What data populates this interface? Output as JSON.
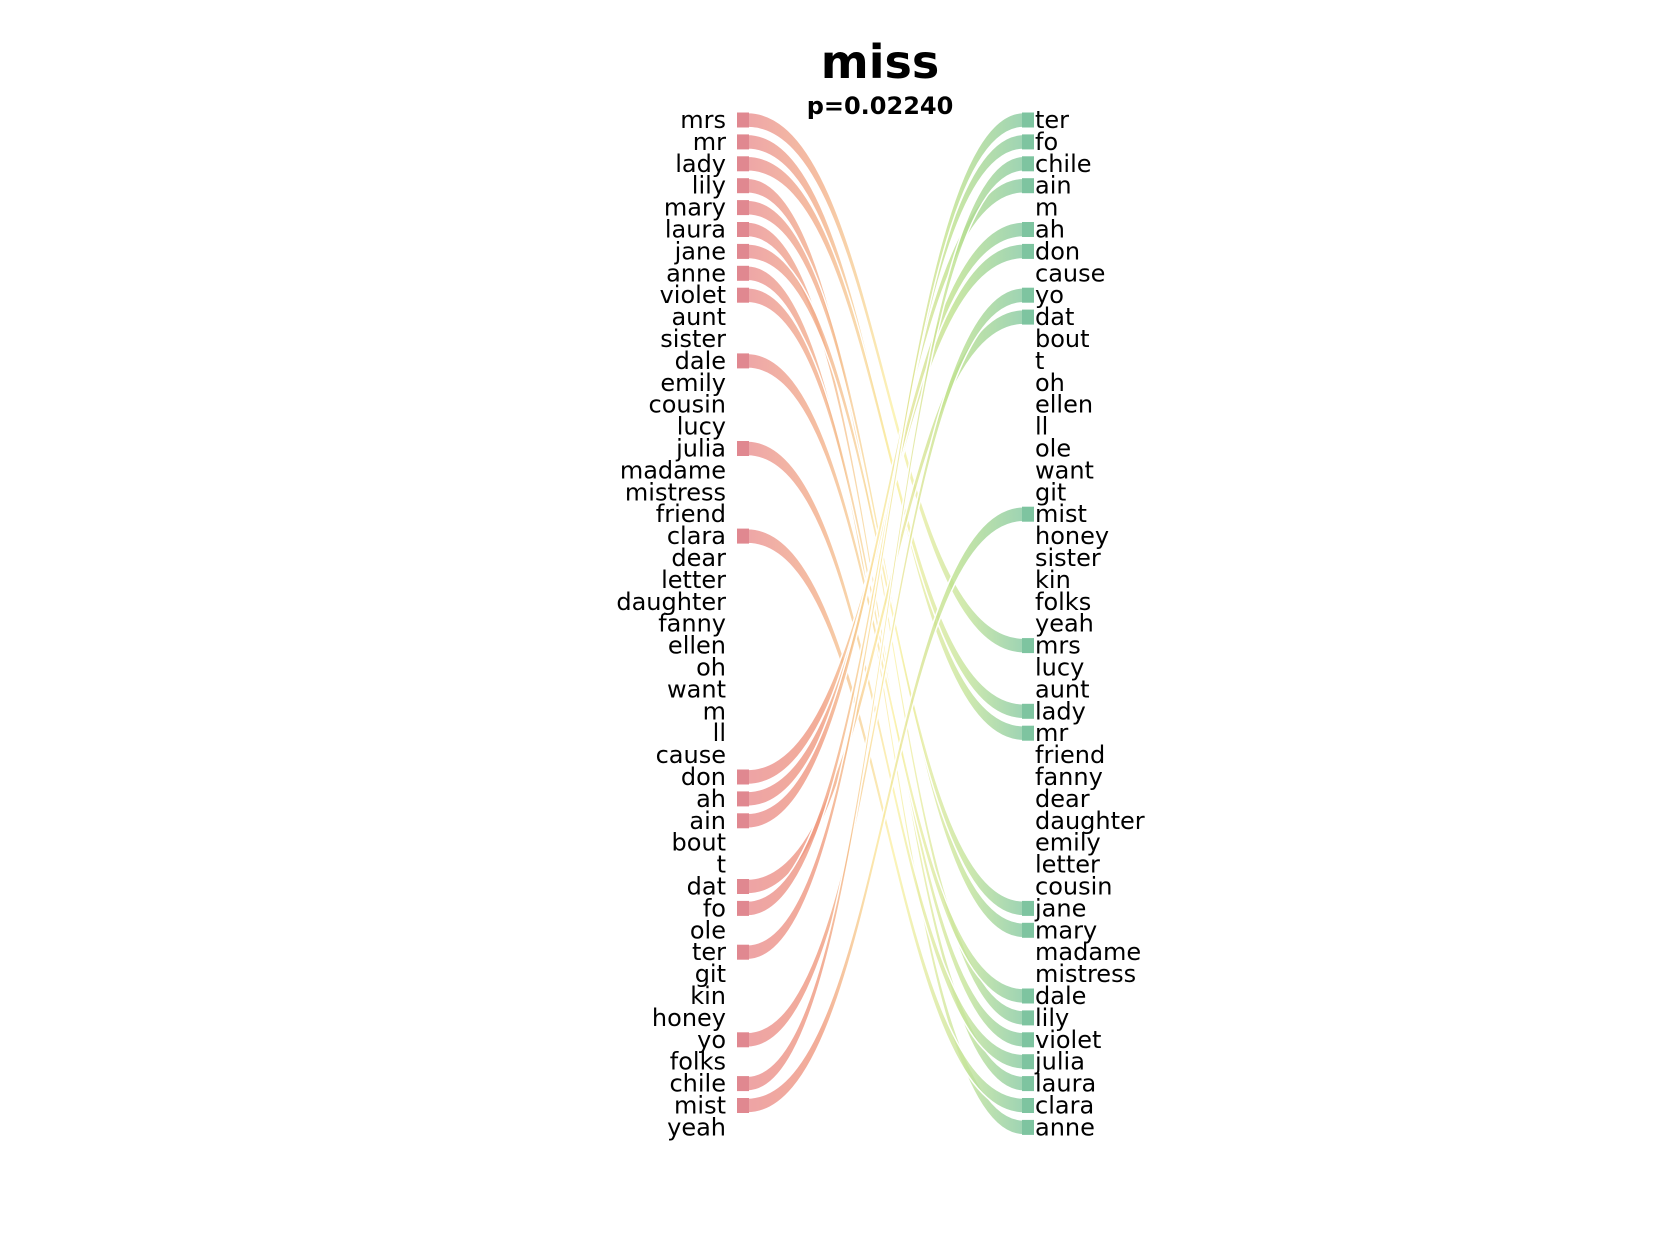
{
  "chart_data": {
    "type": "bump",
    "title": "miss",
    "subtitle": "p=0.02240",
    "left_ranking": [
      "mrs",
      "mr",
      "lady",
      "lily",
      "mary",
      "laura",
      "jane",
      "anne",
      "violet",
      "aunt",
      "sister",
      "dale",
      "emily",
      "cousin",
      "lucy",
      "julia",
      "madame",
      "mistress",
      "friend",
      "clara",
      "dear",
      "letter",
      "daughter",
      "fanny",
      "ellen",
      "oh",
      "want",
      "m",
      "ll",
      "cause",
      "don",
      "ah",
      "ain",
      "bout",
      "t",
      "dat",
      "fo",
      "ole",
      "ter",
      "git",
      "kin",
      "honey",
      "yo",
      "folks",
      "chile",
      "mist",
      "yeah"
    ],
    "right_ranking": [
      "ter",
      "fo",
      "chile",
      "ain",
      "m",
      "ah",
      "don",
      "cause",
      "yo",
      "dat",
      "bout",
      "t",
      "oh",
      "ellen",
      "ll",
      "ole",
      "want",
      "git",
      "mist",
      "honey",
      "sister",
      "kin",
      "folks",
      "yeah",
      "mrs",
      "lucy",
      "aunt",
      "lady",
      "mr",
      "friend",
      "fanny",
      "dear",
      "daughter",
      "emily",
      "letter",
      "cousin",
      "jane",
      "mary",
      "madame",
      "mistress",
      "dale",
      "lily",
      "violet",
      "julia",
      "laura",
      "clara",
      "anne"
    ],
    "highlighted_words": [
      "mrs",
      "mr",
      "lady",
      "lily",
      "mary",
      "laura",
      "jane",
      "anne",
      "violet",
      "dale",
      "julia",
      "clara",
      "don",
      "ah",
      "ain",
      "dat",
      "fo",
      "ter",
      "yo",
      "chile",
      "mist"
    ],
    "colors": {
      "left_bar": "#e08890",
      "right_bar": "#7ec4a0",
      "gradient": [
        "#e89098",
        "#f2b090",
        "#fde79a",
        "#f6f7a6",
        "#c9e79a",
        "#8fcf9a"
      ]
    }
  }
}
